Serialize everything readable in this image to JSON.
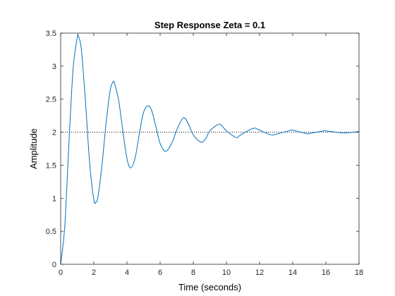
{
  "chart_data": {
    "type": "line",
    "title": "Step Response Zeta = 0.1",
    "xlabel": "Time (seconds)",
    "ylabel": "Amplitude",
    "xlim": [
      0,
      18
    ],
    "ylim": [
      0,
      3.5
    ],
    "xticks": [
      0,
      2,
      4,
      6,
      8,
      10,
      12,
      14,
      16,
      18
    ],
    "yticks": [
      0,
      0.5,
      1,
      1.5,
      2,
      2.5,
      3,
      3.5
    ],
    "xtick_labels": [
      "0",
      "2",
      "4",
      "6",
      "8",
      "10",
      "12",
      "14",
      "16",
      "18"
    ],
    "ytick_labels": [
      "0",
      "0.5",
      "1",
      "1.5",
      "2",
      "2.5",
      "3",
      "3.5"
    ],
    "grid": false,
    "reference_line": {
      "y": 2,
      "style": "dotted",
      "color": "#000000"
    },
    "series": [
      {
        "color": "#0072BD",
        "x": [
          0,
          0.25,
          0.5,
          0.75,
          1,
          1.06,
          1.25,
          1.5,
          1.75,
          2,
          2.12,
          2.25,
          2.5,
          2.75,
          3,
          3.17,
          3.25,
          3.5,
          3.75,
          4,
          4.23,
          4.5,
          4.75,
          5,
          5.29,
          5.5,
          5.75,
          6,
          6.35,
          6.75,
          7,
          7.41,
          7.75,
          8,
          8.46,
          8.75,
          9,
          9.52,
          9.75,
          10,
          10.58,
          10.75,
          11,
          11.64,
          12,
          12.69,
          13,
          13.75,
          14,
          14.81,
          15,
          15.87,
          16,
          16.93,
          17.25,
          18
        ],
        "y": [
          0,
          0.58,
          1.84,
          2.96,
          3.43,
          3.46,
          3.25,
          2.45,
          1.53,
          0.98,
          0.94,
          1.02,
          1.52,
          2.16,
          2.65,
          2.76,
          2.74,
          2.48,
          2.02,
          1.6,
          1.46,
          1.62,
          1.98,
          2.3,
          2.4,
          2.32,
          2.08,
          1.83,
          1.71,
          1.86,
          2.03,
          2.22,
          2.1,
          1.96,
          1.85,
          1.9,
          2.02,
          2.12,
          2.09,
          2.02,
          1.92,
          1.94,
          1.98,
          2.06,
          2.03,
          1.96,
          1.97,
          2.02,
          2.03,
          1.98,
          1.98,
          2.02,
          2.02,
          1.99,
          1.99,
          2.01
        ]
      }
    ]
  }
}
